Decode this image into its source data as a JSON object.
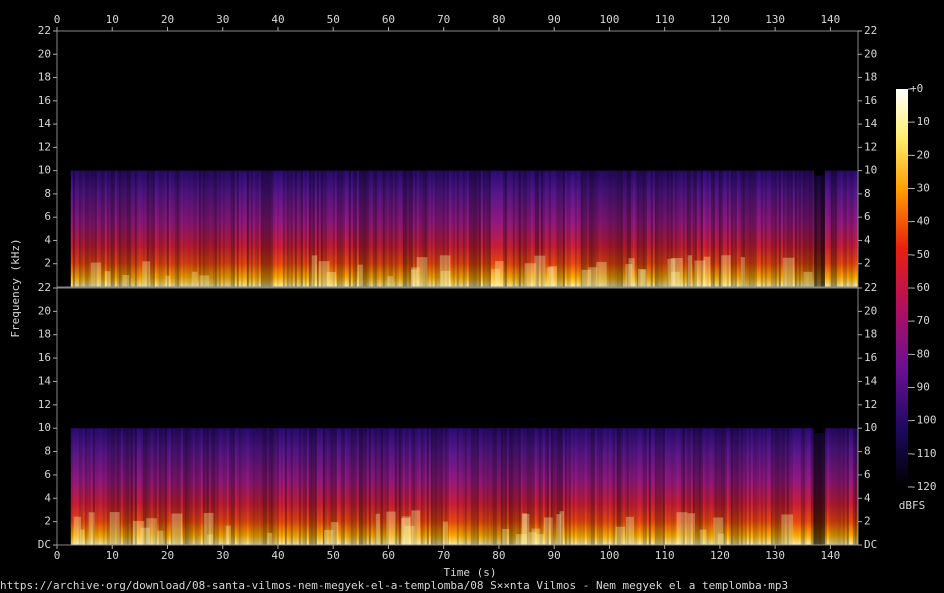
{
  "chart_data": {
    "type": "spectrogram",
    "x_label": "Time (s)",
    "y_label": "Frequency (kHz)",
    "xlim": [
      0,
      145
    ],
    "xticks": [
      0,
      10,
      20,
      30,
      40,
      50,
      60,
      70,
      80,
      90,
      100,
      110,
      120,
      130,
      140
    ],
    "channels": [
      {
        "ylim": [
          0,
          22
        ],
        "yticks": [
          2,
          4,
          6,
          8,
          10,
          12,
          14,
          16,
          18,
          20,
          22
        ]
      },
      {
        "ylim": [
          0,
          22
        ],
        "yticks": [
          {
            "value": 0,
            "label": "DC"
          },
          2,
          4,
          6,
          8,
          10,
          12,
          14,
          16,
          18,
          20,
          22
        ]
      }
    ],
    "colorbar": {
      "label": "dBFS",
      "lim": [
        -120,
        0
      ],
      "ticks": [
        {
          "value": 0,
          "label": "+0"
        },
        -10,
        -20,
        -30,
        -40,
        -50,
        -60,
        -70,
        -80,
        -90,
        -100,
        -110,
        -120
      ]
    }
  },
  "footer": "https://archive·org/download/08-santa-vilmos-nem-megyek-el-a-templomba/08 S××nta Vilmos - Nem megyek el a templomba·mp3"
}
